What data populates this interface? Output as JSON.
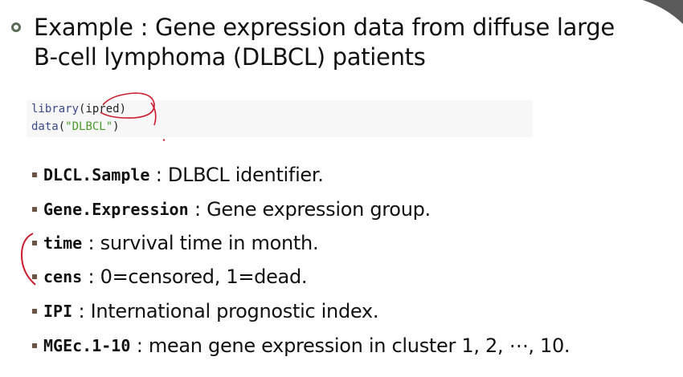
{
  "heading": {
    "line1": "Example : Gene expression data from diffuse large",
    "line2": "B-cell lymphoma (DLBCL) patients"
  },
  "code": {
    "line1": {
      "fn": "library",
      "open": "(",
      "arg": "ipred",
      "close": ")"
    },
    "line2": {
      "fn": "data",
      "open": "(",
      "arg": "\"DLBCL\"",
      "close": ")"
    }
  },
  "bullets": [
    {
      "term": "DLCL.Sample",
      "sep": " : ",
      "desc": "DLBCL identifier."
    },
    {
      "term": "Gene.Expression",
      "sep": " : ",
      "desc": "Gene expression group."
    },
    {
      "term": "time",
      "sep": " : ",
      "desc": "survival time in month."
    },
    {
      "term": "cens",
      "sep": " : ",
      "desc": "0=censored, 1=dead."
    },
    {
      "term": "IPI",
      "sep": " : ",
      "desc": "International prognostic index."
    },
    {
      "term": "MGEc.1-10",
      "sep": " : ",
      "desc": "mean gene expression in cluster 1, 2, ⋯, 10."
    }
  ],
  "colors": {
    "annotation": "#cc1b2b",
    "bullet": "#6b5444",
    "code_string": "#4a9a2a",
    "code_function": "#3a4a8a"
  }
}
